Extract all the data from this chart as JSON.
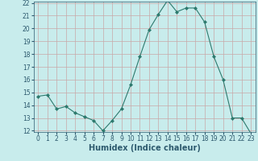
{
  "x": [
    0,
    1,
    2,
    3,
    4,
    5,
    6,
    7,
    8,
    9,
    10,
    11,
    12,
    13,
    14,
    15,
    16,
    17,
    18,
    19,
    20,
    21,
    22,
    23
  ],
  "y": [
    14.7,
    14.8,
    13.7,
    13.9,
    13.4,
    13.1,
    12.8,
    12.0,
    12.8,
    13.7,
    15.6,
    17.8,
    19.9,
    21.1,
    22.2,
    21.3,
    21.6,
    21.6,
    20.5,
    17.8,
    16.0,
    13.0,
    13.0,
    11.8
  ],
  "line_color": "#2d7a6e",
  "marker": "D",
  "marker_size": 2,
  "bg_color": "#c8ecec",
  "grid_color": "#c8a8a8",
  "xlabel": "Humidex (Indice chaleur)",
  "ylim": [
    12,
    22
  ],
  "xlim": [
    -0.5,
    23.5
  ],
  "yticks": [
    12,
    13,
    14,
    15,
    16,
    17,
    18,
    19,
    20,
    21,
    22
  ],
  "xticks": [
    0,
    1,
    2,
    3,
    4,
    5,
    6,
    7,
    8,
    9,
    10,
    11,
    12,
    13,
    14,
    15,
    16,
    17,
    18,
    19,
    20,
    21,
    22,
    23
  ],
  "tick_label_fontsize": 5.5,
  "xlabel_fontsize": 7,
  "tick_color": "#2d5a6e",
  "line_width": 0.8
}
